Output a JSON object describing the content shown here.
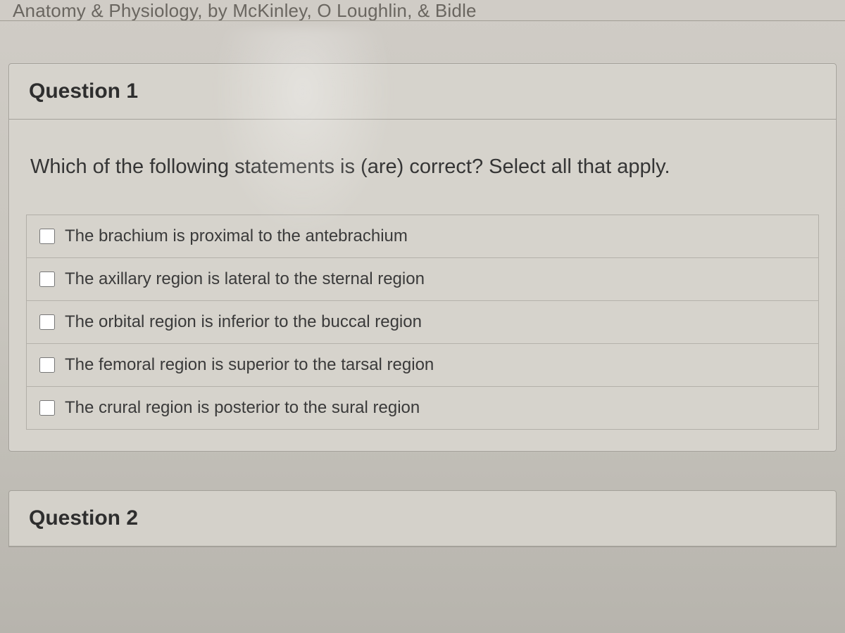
{
  "header_fragment": "Anatomy & Physiology, by McKinley, O Loughlin, & Bidle",
  "question1": {
    "title": "Question 1",
    "prompt": "Which of the following statements is (are) correct? Select all that apply.",
    "options": [
      "The brachium is proximal to the antebrachium",
      "The axillary region is lateral to the sternal region",
      "The orbital region is inferior to the buccal region",
      "The femoral region is superior to the tarsal region",
      "The crural region is posterior to the sural region"
    ]
  },
  "question2": {
    "title": "Question 2"
  },
  "colors": {
    "page_bg_top": "#d0ccc6",
    "page_bg_bottom": "#b7b4ad",
    "card_bg": "#d6d3cc",
    "border": "#a3a099",
    "text": "#2e2e2e"
  }
}
